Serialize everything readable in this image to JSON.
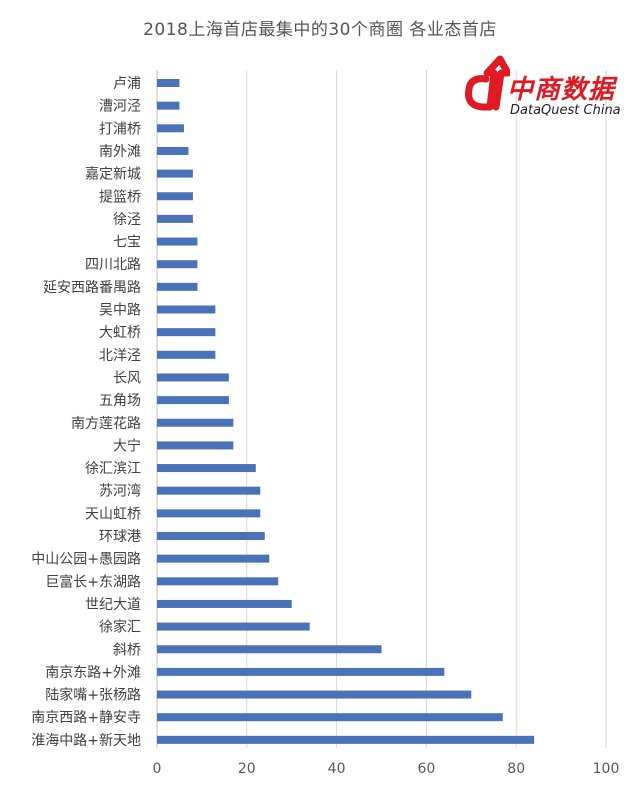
{
  "chart_data": {
    "type": "bar",
    "orientation": "horizontal",
    "title": "2018上海首店最集中的30个商圈 各业态首店",
    "xlim": [
      0,
      100
    ],
    "xticks": [
      0,
      20,
      40,
      60,
      80,
      100
    ],
    "grid": "vertical",
    "categories": [
      "卢浦",
      "漕河泾",
      "打浦桥",
      "南外滩",
      "嘉定新城",
      "提篮桥",
      "徐泾",
      "七宝",
      "四川北路",
      "延安西路番禺路",
      "吴中路",
      "大虹桥",
      "北洋泾",
      "长风",
      "五角场",
      "南方莲花路",
      "大宁",
      "徐汇滨江",
      "苏河湾",
      "天山虹桥",
      "环球港",
      "中山公园+愚园路",
      "巨富长+东湖路",
      "世纪大道",
      "徐家汇",
      "斜桥",
      "南京东路+外滩",
      "陆家嘴+张杨路",
      "南京西路+静安寺",
      "淮海中路+新天地"
    ],
    "values": [
      5,
      5,
      6,
      7,
      8,
      8,
      8,
      9,
      9,
      9,
      13,
      13,
      13,
      16,
      16,
      17,
      17,
      22,
      23,
      23,
      24,
      25,
      27,
      30,
      34,
      50,
      64,
      70,
      77,
      84
    ],
    "bar_color": "#4a72b8"
  },
  "logo": {
    "cn": "中商数据",
    "en": "DataQuest China",
    "color": "#e01a22"
  }
}
